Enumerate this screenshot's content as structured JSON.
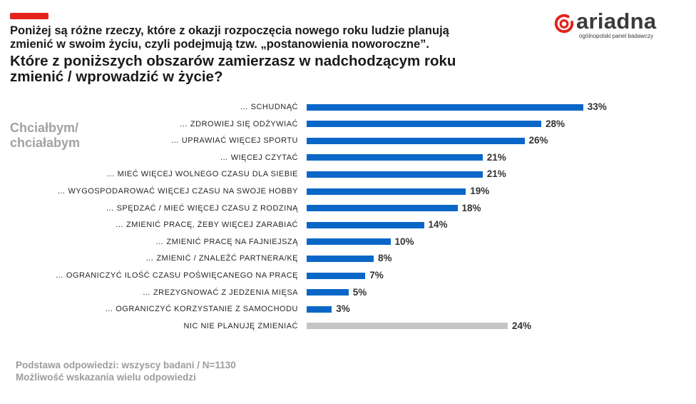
{
  "brand": {
    "logo_text": "ariadna",
    "tagline": "ogólnopolski panel badawczy",
    "accent_color": "#e3231b"
  },
  "header": {
    "intro_lines": [
      "Poniżej są różne rzeczy, które z okazji rozpoczęcia nowego roku ludzie planują",
      "zmienić w swoim życiu, czyli podejmują tzw. „postanowienia noworoczne”."
    ],
    "question_lines": [
      "Które z poniższych obszarów zamierzasz w nadchodzącym roku",
      "zmienić / wprowadzić w życie?"
    ]
  },
  "side_label_lines": [
    "Chciałbym/",
    "chciałabym"
  ],
  "footer": {
    "base": "Podstawa odpowiedzi: wszyscy badani / N=1130",
    "note": "Możliwość wskazania wielu odpowiedzi"
  },
  "chart_data": {
    "type": "bar",
    "orientation": "horizontal",
    "categories": [
      "… SCHUDNĄĆ",
      "… ZDROWIEJ SIĘ ODŻYWIAĆ",
      "… UPRAWIAĆ WIĘCEJ SPORTU",
      "… WIĘCEJ CZYTAĆ",
      "… MIEĆ WIĘCEJ WOLNEGO CZASU DLA SIEBIE",
      "… WYGOSPODAROWAĆ WIĘCEJ CZASU NA SWOJE HOBBY",
      "… SPĘDZAĆ / MIEĆ WIĘCEJ CZASU Z RODZINĄ",
      "… ZMIENIĆ PRACĘ, ŻEBY WIĘCEJ ZARABIAĆ",
      "… ZMIENIĆ PRACĘ NA FAJNIEJSZĄ",
      "… ZMIENIĆ / ZNALEŹĆ PARTNERA/KĘ",
      "… OGRANICZYĆ ILOŚĆ CZASU POŚWIĘCANEGO NA PRACĘ",
      "… ZREZYGNOWAĆ Z JEDZENIA MIĘSA",
      "… OGRANICZYĆ KORZYSTANIE Z SAMOCHODU",
      "NIC NIE PLANUJĘ ZMIENIAĆ"
    ],
    "values": [
      33,
      28,
      26,
      21,
      21,
      19,
      18,
      14,
      10,
      8,
      7,
      5,
      3,
      24
    ],
    "unit": "%",
    "colors": [
      "#0b67c7",
      "#0b67c7",
      "#0b67c7",
      "#0b67c7",
      "#0b67c7",
      "#0b67c7",
      "#0b67c7",
      "#0b67c7",
      "#0b67c7",
      "#0b67c7",
      "#0b67c7",
      "#0b67c7",
      "#0b67c7",
      "#c4c4c4"
    ],
    "grid": false,
    "legend": "none"
  }
}
